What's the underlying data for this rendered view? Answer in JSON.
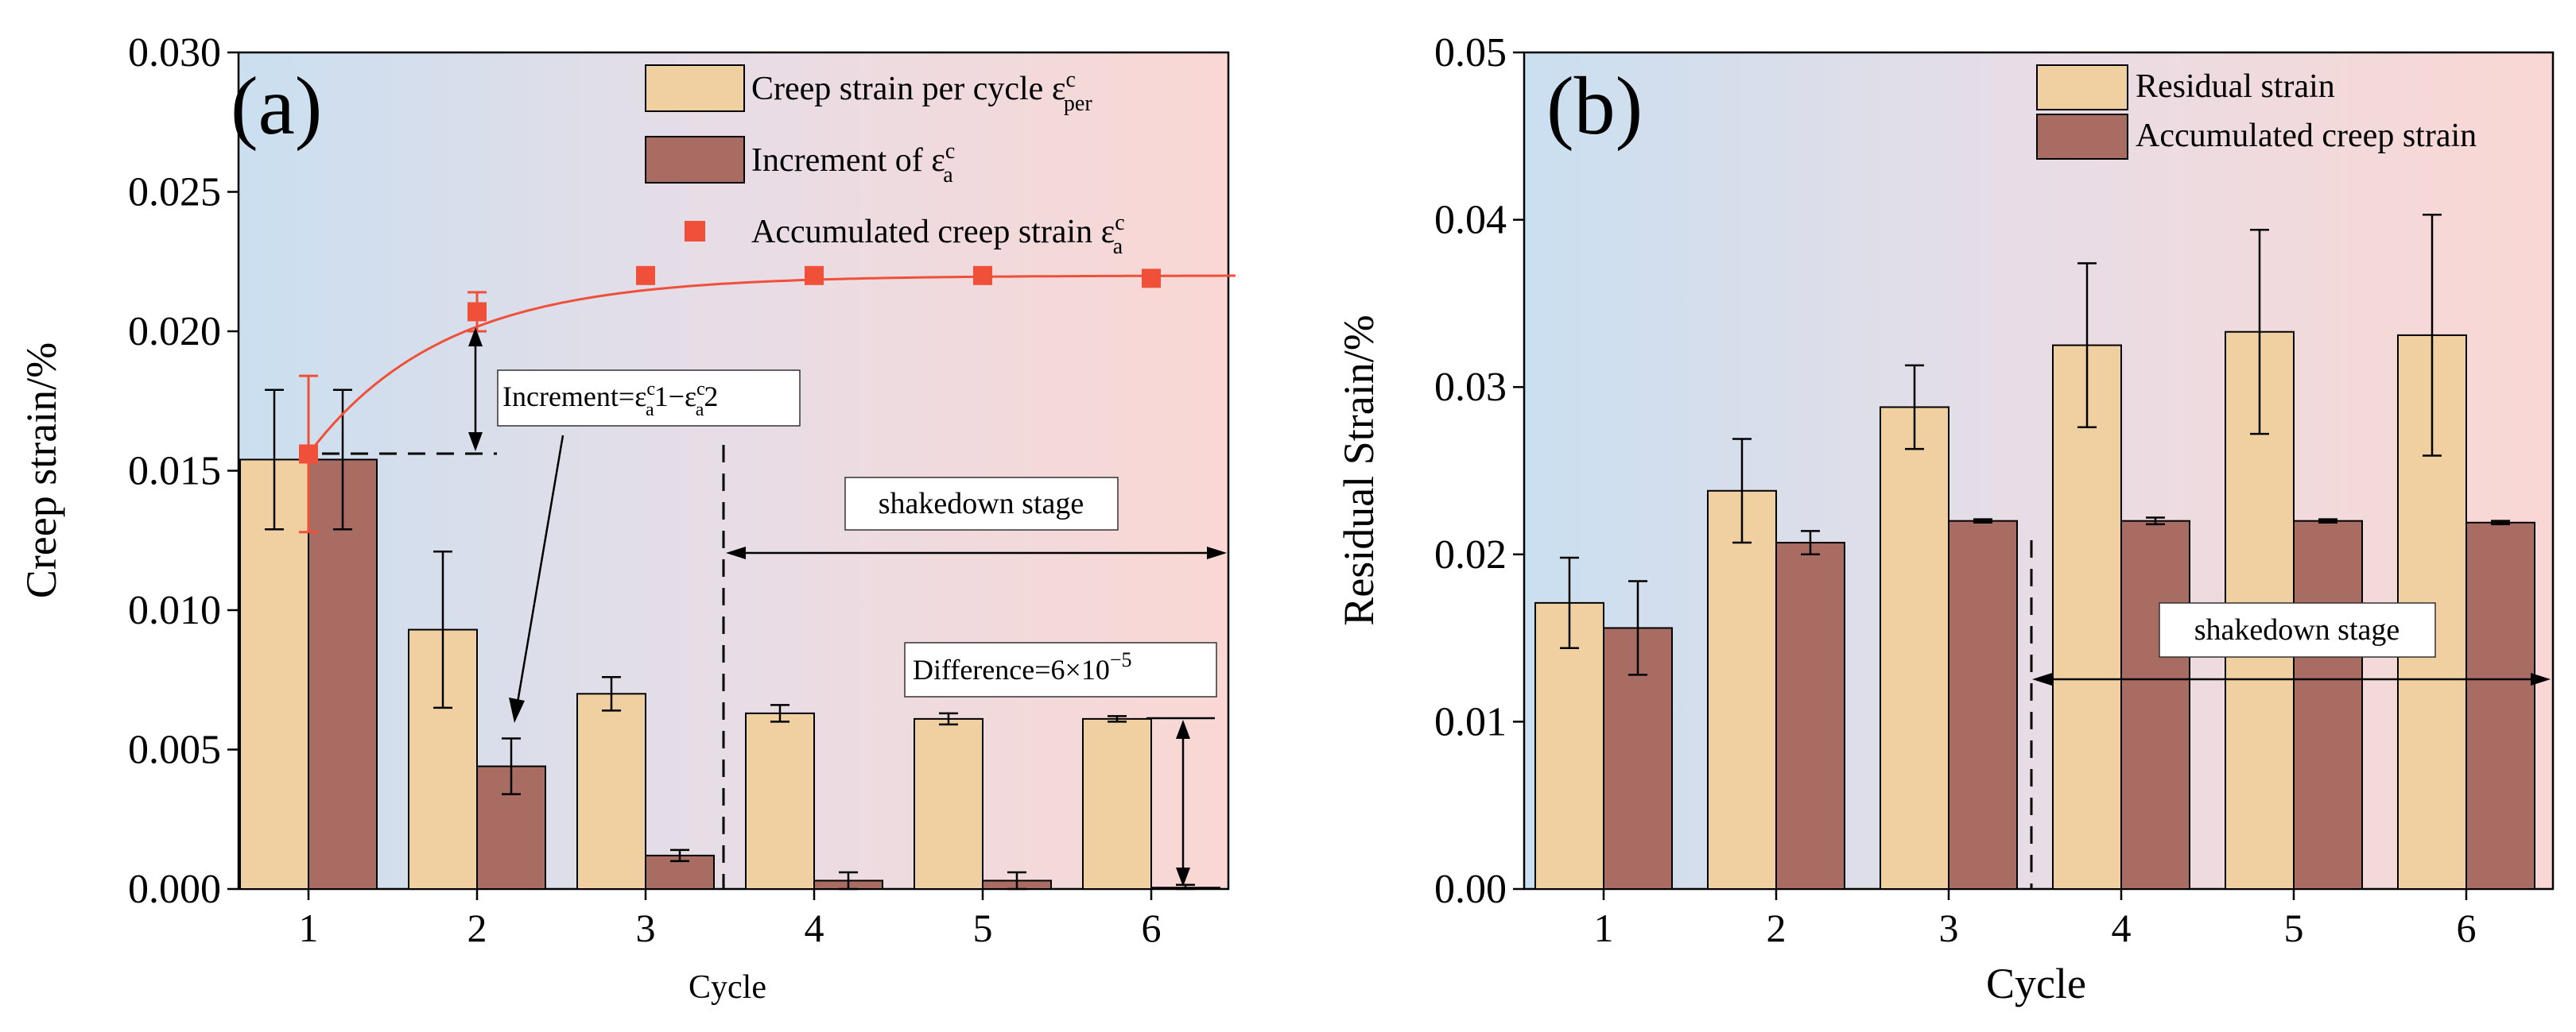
{
  "chart_data": [
    {
      "type": "bar",
      "panel_label": "(a)",
      "xlabel": "Cycle",
      "ylabel": "Creep strain/%",
      "ylim": [
        0,
        0.03
      ],
      "yticks": [
        "0.000",
        "0.005",
        "0.010",
        "0.015",
        "0.020",
        "0.025",
        "0.030"
      ],
      "categories": [
        "1",
        "2",
        "3",
        "4",
        "5",
        "6"
      ],
      "series": [
        {
          "name": "Creep strain per cycle ε",
          "legend_sup": "c",
          "legend_sub": "per",
          "color": "#f0d0a0",
          "values": [
            0.0154,
            0.0093,
            0.007,
            0.0063,
            0.0061,
            0.0061
          ],
          "errors": [
            0.0025,
            0.0028,
            0.0006,
            0.0003,
            0.0002,
            0.0001
          ]
        },
        {
          "name": "Increment of ε",
          "legend_sup": "c",
          "legend_sub": "a",
          "color": "#a86c63",
          "values": [
            0.0154,
            0.0044,
            0.0012,
            0.0003,
            0.0003,
            5e-05
          ],
          "errors": [
            0.0025,
            0.001,
            0.0002,
            0.0003,
            0.0003,
            0.0001
          ]
        }
      ],
      "scatter": {
        "name": "Accumulated creep strain ε",
        "legend_sup": "c",
        "legend_sub": "a",
        "color": "#f0503a",
        "values": [
          0.0156,
          0.0207,
          0.022,
          0.022,
          0.022,
          0.0219
        ],
        "errors": [
          0.0028,
          0.0007,
          0.0,
          0.0,
          0.0,
          0.0
        ]
      },
      "annotations": {
        "increment_box": {
          "prefix": "Increment=ε",
          "sup1": "c",
          "sub1": "a",
          "mid": "1−ε",
          "sup2": "c",
          "sub2": "a",
          "suffix": "2"
        },
        "shakedown": "shakedown stage",
        "difference": {
          "prefix": "Difference=6×10",
          "sup": "−5"
        }
      }
    },
    {
      "type": "bar",
      "panel_label": "(b)",
      "xlabel": "Cycle",
      "ylabel": "Residual Strain/%",
      "ylim": [
        0,
        0.05
      ],
      "yticks": [
        "0.00",
        "0.01",
        "0.02",
        "0.03",
        "0.04",
        "0.05"
      ],
      "categories": [
        "1",
        "2",
        "3",
        "4",
        "5",
        "6"
      ],
      "series": [
        {
          "name": "Residual strain",
          "color": "#f0d0a0",
          "values": [
            0.0171,
            0.0238,
            0.0288,
            0.0325,
            0.0333,
            0.0331
          ],
          "errors": [
            0.0027,
            0.0031,
            0.0025,
            0.0049,
            0.0061,
            0.0072
          ]
        },
        {
          "name": "Accumulated creep strain",
          "color": "#a86c63",
          "values": [
            0.0156,
            0.0207,
            0.022,
            0.022,
            0.022,
            0.0219
          ],
          "errors": [
            0.0028,
            0.0007,
            0.0001,
            0.0002,
            0.0001,
            0.0001
          ]
        }
      ],
      "annotations": {
        "shakedown": "shakedown stage"
      }
    }
  ]
}
